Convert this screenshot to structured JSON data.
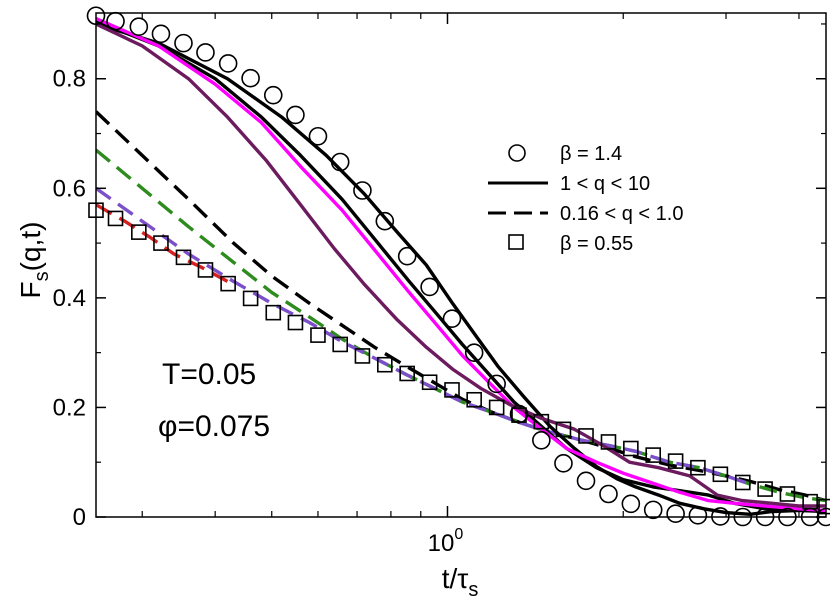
{
  "chart_data": {
    "type": "line",
    "xscale": "log",
    "xlim": [
      0.25,
      4.45
    ],
    "ylim": [
      0,
      0.92
    ],
    "ylabel": "F",
    "ylabel_sub": "s",
    "ylabel_tail": "(q,t)",
    "xlabel": "t/τ",
    "xlabel_sub": "s",
    "xticks": [
      {
        "value": 1,
        "base": "10",
        "exp": "0"
      }
    ],
    "yticks": [
      {
        "value": 0,
        "label": "0"
      },
      {
        "value": 0.2,
        "label": "0.2"
      },
      {
        "value": 0.4,
        "label": "0.4"
      },
      {
        "value": 0.6,
        "label": "0.6"
      },
      {
        "value": 0.8,
        "label": "0.8"
      }
    ],
    "annotations": [
      "T=0.05",
      "φ=0.075"
    ],
    "legend": [
      {
        "label": "β = 1.4",
        "style": "circle"
      },
      {
        "label": "1 < q < 10",
        "style": "solid"
      },
      {
        "label": "0.16 < q  < 1.0",
        "style": "dashed"
      },
      {
        "label": "β = 0.55",
        "style": "square"
      }
    ],
    "series": [
      {
        "name": "β = 1.4",
        "style": "circle",
        "color": "#000000",
        "x": [
          0.25,
          0.27,
          0.296,
          0.323,
          0.353,
          0.385,
          0.421,
          0.46,
          0.503,
          0.549,
          0.6,
          0.655,
          0.715,
          0.781,
          0.853,
          0.932,
          1.018,
          1.111,
          1.214,
          1.326,
          1.448,
          1.58,
          1.727,
          1.887,
          2.061,
          2.251,
          2.459,
          2.685,
          2.934,
          3.205,
          3.5,
          3.822,
          4.18,
          4.45
        ],
        "y": [
          0.915,
          0.905,
          0.895,
          0.882,
          0.865,
          0.848,
          0.828,
          0.801,
          0.77,
          0.734,
          0.695,
          0.648,
          0.596,
          0.54,
          0.476,
          0.42,
          0.362,
          0.3,
          0.243,
          0.188,
          0.14,
          0.098,
          0.066,
          0.042,
          0.024,
          0.013,
          0.006,
          0.003,
          0.001,
          0.0,
          0.0,
          0.0,
          0.0,
          0.0
        ]
      },
      {
        "name": "β = 0.55",
        "style": "square",
        "color": "#000000",
        "x": [
          0.25,
          0.27,
          0.296,
          0.323,
          0.353,
          0.385,
          0.421,
          0.46,
          0.503,
          0.549,
          0.6,
          0.655,
          0.715,
          0.781,
          0.853,
          0.932,
          1.018,
          1.111,
          1.214,
          1.326,
          1.448,
          1.58,
          1.727,
          1.887,
          2.061,
          2.251,
          2.459,
          2.685,
          2.934,
          3.205,
          3.5,
          3.822,
          4.18,
          4.45
        ],
        "y": [
          0.56,
          0.545,
          0.52,
          0.5,
          0.474,
          0.451,
          0.426,
          0.399,
          0.373,
          0.355,
          0.332,
          0.315,
          0.294,
          0.278,
          0.262,
          0.246,
          0.232,
          0.214,
          0.2,
          0.186,
          0.174,
          0.16,
          0.148,
          0.137,
          0.125,
          0.113,
          0.102,
          0.09,
          0.078,
          0.063,
          0.051,
          0.042,
          0.028,
          0.019
        ]
      },
      {
        "name": "1 < q < 10 (a)",
        "style": "solid",
        "color": "#000000",
        "x": [
          0.25,
          0.32,
          0.42,
          0.52,
          0.62,
          0.72,
          0.82,
          0.92,
          1.02,
          1.12,
          1.22,
          1.35,
          1.5,
          1.65,
          1.8,
          1.95,
          2.1,
          2.3,
          2.5,
          2.75,
          3.0,
          3.3,
          3.6,
          4.0,
          4.45
        ],
        "y": [
          0.9,
          0.865,
          0.8,
          0.73,
          0.66,
          0.59,
          0.52,
          0.46,
          0.39,
          0.33,
          0.275,
          0.22,
          0.165,
          0.125,
          0.092,
          0.07,
          0.055,
          0.04,
          0.025,
          0.015,
          0.008,
          0.005,
          0.01,
          0.012,
          0.012
        ]
      },
      {
        "name": "1 < q < 10 (b)",
        "style": "solid",
        "color": "#000000",
        "x": [
          0.25,
          0.32,
          0.4,
          0.48,
          0.56,
          0.66,
          0.76,
          0.86,
          0.96,
          1.06,
          1.18,
          1.3,
          1.45,
          1.6,
          1.8,
          2.0,
          2.25,
          2.5,
          2.8,
          3.1,
          3.5,
          4.0,
          4.45
        ],
        "y": [
          0.905,
          0.86,
          0.8,
          0.73,
          0.66,
          0.58,
          0.5,
          0.43,
          0.37,
          0.315,
          0.26,
          0.21,
          0.165,
          0.125,
          0.09,
          0.068,
          0.055,
          0.048,
          0.04,
          0.025,
          0.015,
          0.012,
          0.01
        ]
      },
      {
        "name": "1 < q < 10 (magenta)",
        "style": "solid",
        "color": "#ff00ff",
        "x": [
          0.25,
          0.32,
          0.4,
          0.48,
          0.56,
          0.66,
          0.76,
          0.86,
          0.96,
          1.06,
          1.18,
          1.3,
          1.45,
          1.6,
          1.8,
          2.0,
          2.2,
          2.5,
          2.8,
          3.1,
          3.5,
          4.0,
          4.45
        ],
        "y": [
          0.91,
          0.86,
          0.79,
          0.72,
          0.64,
          0.56,
          0.48,
          0.41,
          0.35,
          0.295,
          0.245,
          0.2,
          0.16,
          0.125,
          0.1,
          0.08,
          0.065,
          0.045,
          0.03,
          0.025,
          0.02,
          0.015,
          0.012
        ]
      },
      {
        "name": "1 < q < 10 (purple)",
        "style": "solid",
        "color": "#6b1b5e",
        "x": [
          0.25,
          0.3,
          0.36,
          0.42,
          0.49,
          0.56,
          0.64,
          0.72,
          0.82,
          0.92,
          1.02,
          1.14,
          1.28,
          1.45,
          1.65,
          1.85,
          2.05,
          2.3,
          2.6,
          2.9,
          3.2,
          3.6,
          4.0,
          4.45
        ],
        "y": [
          0.9,
          0.86,
          0.8,
          0.73,
          0.65,
          0.57,
          0.49,
          0.425,
          0.36,
          0.31,
          0.27,
          0.235,
          0.205,
          0.18,
          0.16,
          0.13,
          0.1,
          0.09,
          0.075,
          0.04,
          0.03,
          0.025,
          0.02,
          0.02
        ]
      },
      {
        "name": "0.16 < q < 1.0 (black)",
        "style": "dashed",
        "color": "#000000",
        "x": [
          0.25,
          0.3,
          0.36,
          0.43,
          0.5,
          0.58,
          0.66,
          0.75,
          0.85,
          0.95,
          1.06,
          1.2,
          1.35,
          1.5,
          1.7,
          1.9,
          2.1,
          2.4,
          2.7,
          3.0,
          3.3,
          3.7,
          4.1,
          4.45
        ],
        "y": [
          0.74,
          0.66,
          0.58,
          0.5,
          0.44,
          0.39,
          0.35,
          0.31,
          0.275,
          0.245,
          0.215,
          0.19,
          0.17,
          0.155,
          0.14,
          0.125,
          0.11,
          0.095,
          0.085,
          0.075,
          0.065,
          0.05,
          0.04,
          0.03
        ]
      },
      {
        "name": "0.16 < q < 1.0 (green)",
        "style": "dashed",
        "color": "#2e8b1e",
        "x": [
          0.25,
          0.3,
          0.36,
          0.43,
          0.5,
          0.58,
          0.66,
          0.75,
          0.85,
          0.95,
          1.06,
          1.2,
          1.35,
          1.5,
          1.7,
          1.9,
          2.1,
          2.4,
          2.7,
          3.0,
          3.3,
          3.7,
          4.1,
          4.45
        ],
        "y": [
          0.67,
          0.6,
          0.53,
          0.465,
          0.41,
          0.365,
          0.325,
          0.29,
          0.26,
          0.235,
          0.21,
          0.19,
          0.17,
          0.155,
          0.14,
          0.13,
          0.12,
          0.1,
          0.09,
          0.075,
          0.06,
          0.045,
          0.035,
          0.03
        ]
      },
      {
        "name": "0.16 < q < 1.0 (violet)",
        "style": "dashed",
        "color": "#7b4fc9",
        "x": [
          0.25,
          0.3,
          0.36,
          0.43,
          0.5,
          0.58,
          0.66,
          0.75,
          0.85,
          0.95,
          1.06,
          1.2,
          1.35,
          1.5,
          1.7,
          1.9,
          2.1,
          2.4,
          2.7,
          3.0,
          3.3
        ],
        "y": [
          0.6,
          0.54,
          0.48,
          0.43,
          0.39,
          0.355,
          0.32,
          0.29,
          0.26,
          0.235,
          0.21,
          0.19,
          0.17,
          0.155,
          0.14,
          0.13,
          0.12,
          0.1,
          0.09,
          0.075,
          0.06
        ]
      },
      {
        "name": "0.16 < q < 1.0 (red)",
        "style": "dashed",
        "color": "#d42020",
        "x": [
          0.25,
          0.28,
          0.31,
          0.34,
          0.38,
          0.42
        ],
        "y": [
          0.57,
          0.54,
          0.51,
          0.48,
          0.455,
          0.43
        ]
      }
    ]
  }
}
